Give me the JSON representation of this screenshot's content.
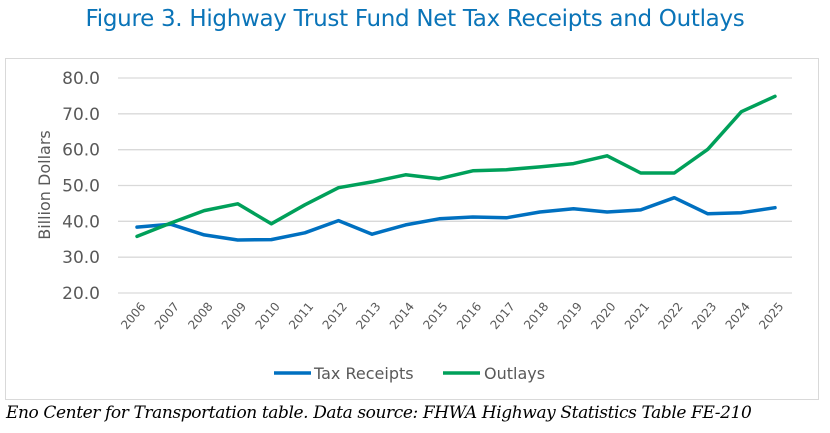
{
  "title": "Figure 3. Highway Trust Fund Net Tax Receipts and Outlays",
  "footer": "Eno Center for Transportation table. Data source: FHWA Highway Statistics Table FE-210",
  "chart_data": {
    "type": "line",
    "title": "Figure 3. Highway Trust Fund Net Tax Receipts and Outlays",
    "xlabel": "",
    "ylabel": "Billion Dollars",
    "ylim": [
      20,
      80
    ],
    "yticks": [
      "80.0",
      "70.0",
      "60.0",
      "50.0",
      "40.0",
      "30.0",
      "20.0"
    ],
    "ytick_values": [
      80,
      70,
      60,
      50,
      40,
      30,
      20
    ],
    "grid": true,
    "legend_position": "bottom",
    "categories": [
      "2006",
      "2007",
      "2008",
      "2009",
      "2010",
      "2011",
      "2012",
      "2013",
      "2014",
      "2015",
      "2016",
      "2017",
      "2018",
      "2019",
      "2020",
      "2021",
      "2022",
      "2023",
      "2024",
      "2025"
    ],
    "series": [
      {
        "name": "Tax Receipts",
        "color": "#0070c0",
        "values": [
          38.4,
          39.2,
          36.2,
          34.8,
          34.9,
          36.8,
          40.2,
          36.4,
          39.0,
          40.7,
          41.2,
          41.0,
          42.6,
          43.5,
          42.6,
          43.2,
          46.6,
          42.1,
          42.4,
          43.8
        ]
      },
      {
        "name": "Outlays",
        "color": "#00a05a",
        "values": [
          35.8,
          39.5,
          43.0,
          44.9,
          39.3,
          44.6,
          49.4,
          51.0,
          53.0,
          51.9,
          54.1,
          54.4,
          55.2,
          56.1,
          58.3,
          53.5,
          53.5,
          60.1,
          70.6,
          74.9
        ]
      }
    ]
  }
}
